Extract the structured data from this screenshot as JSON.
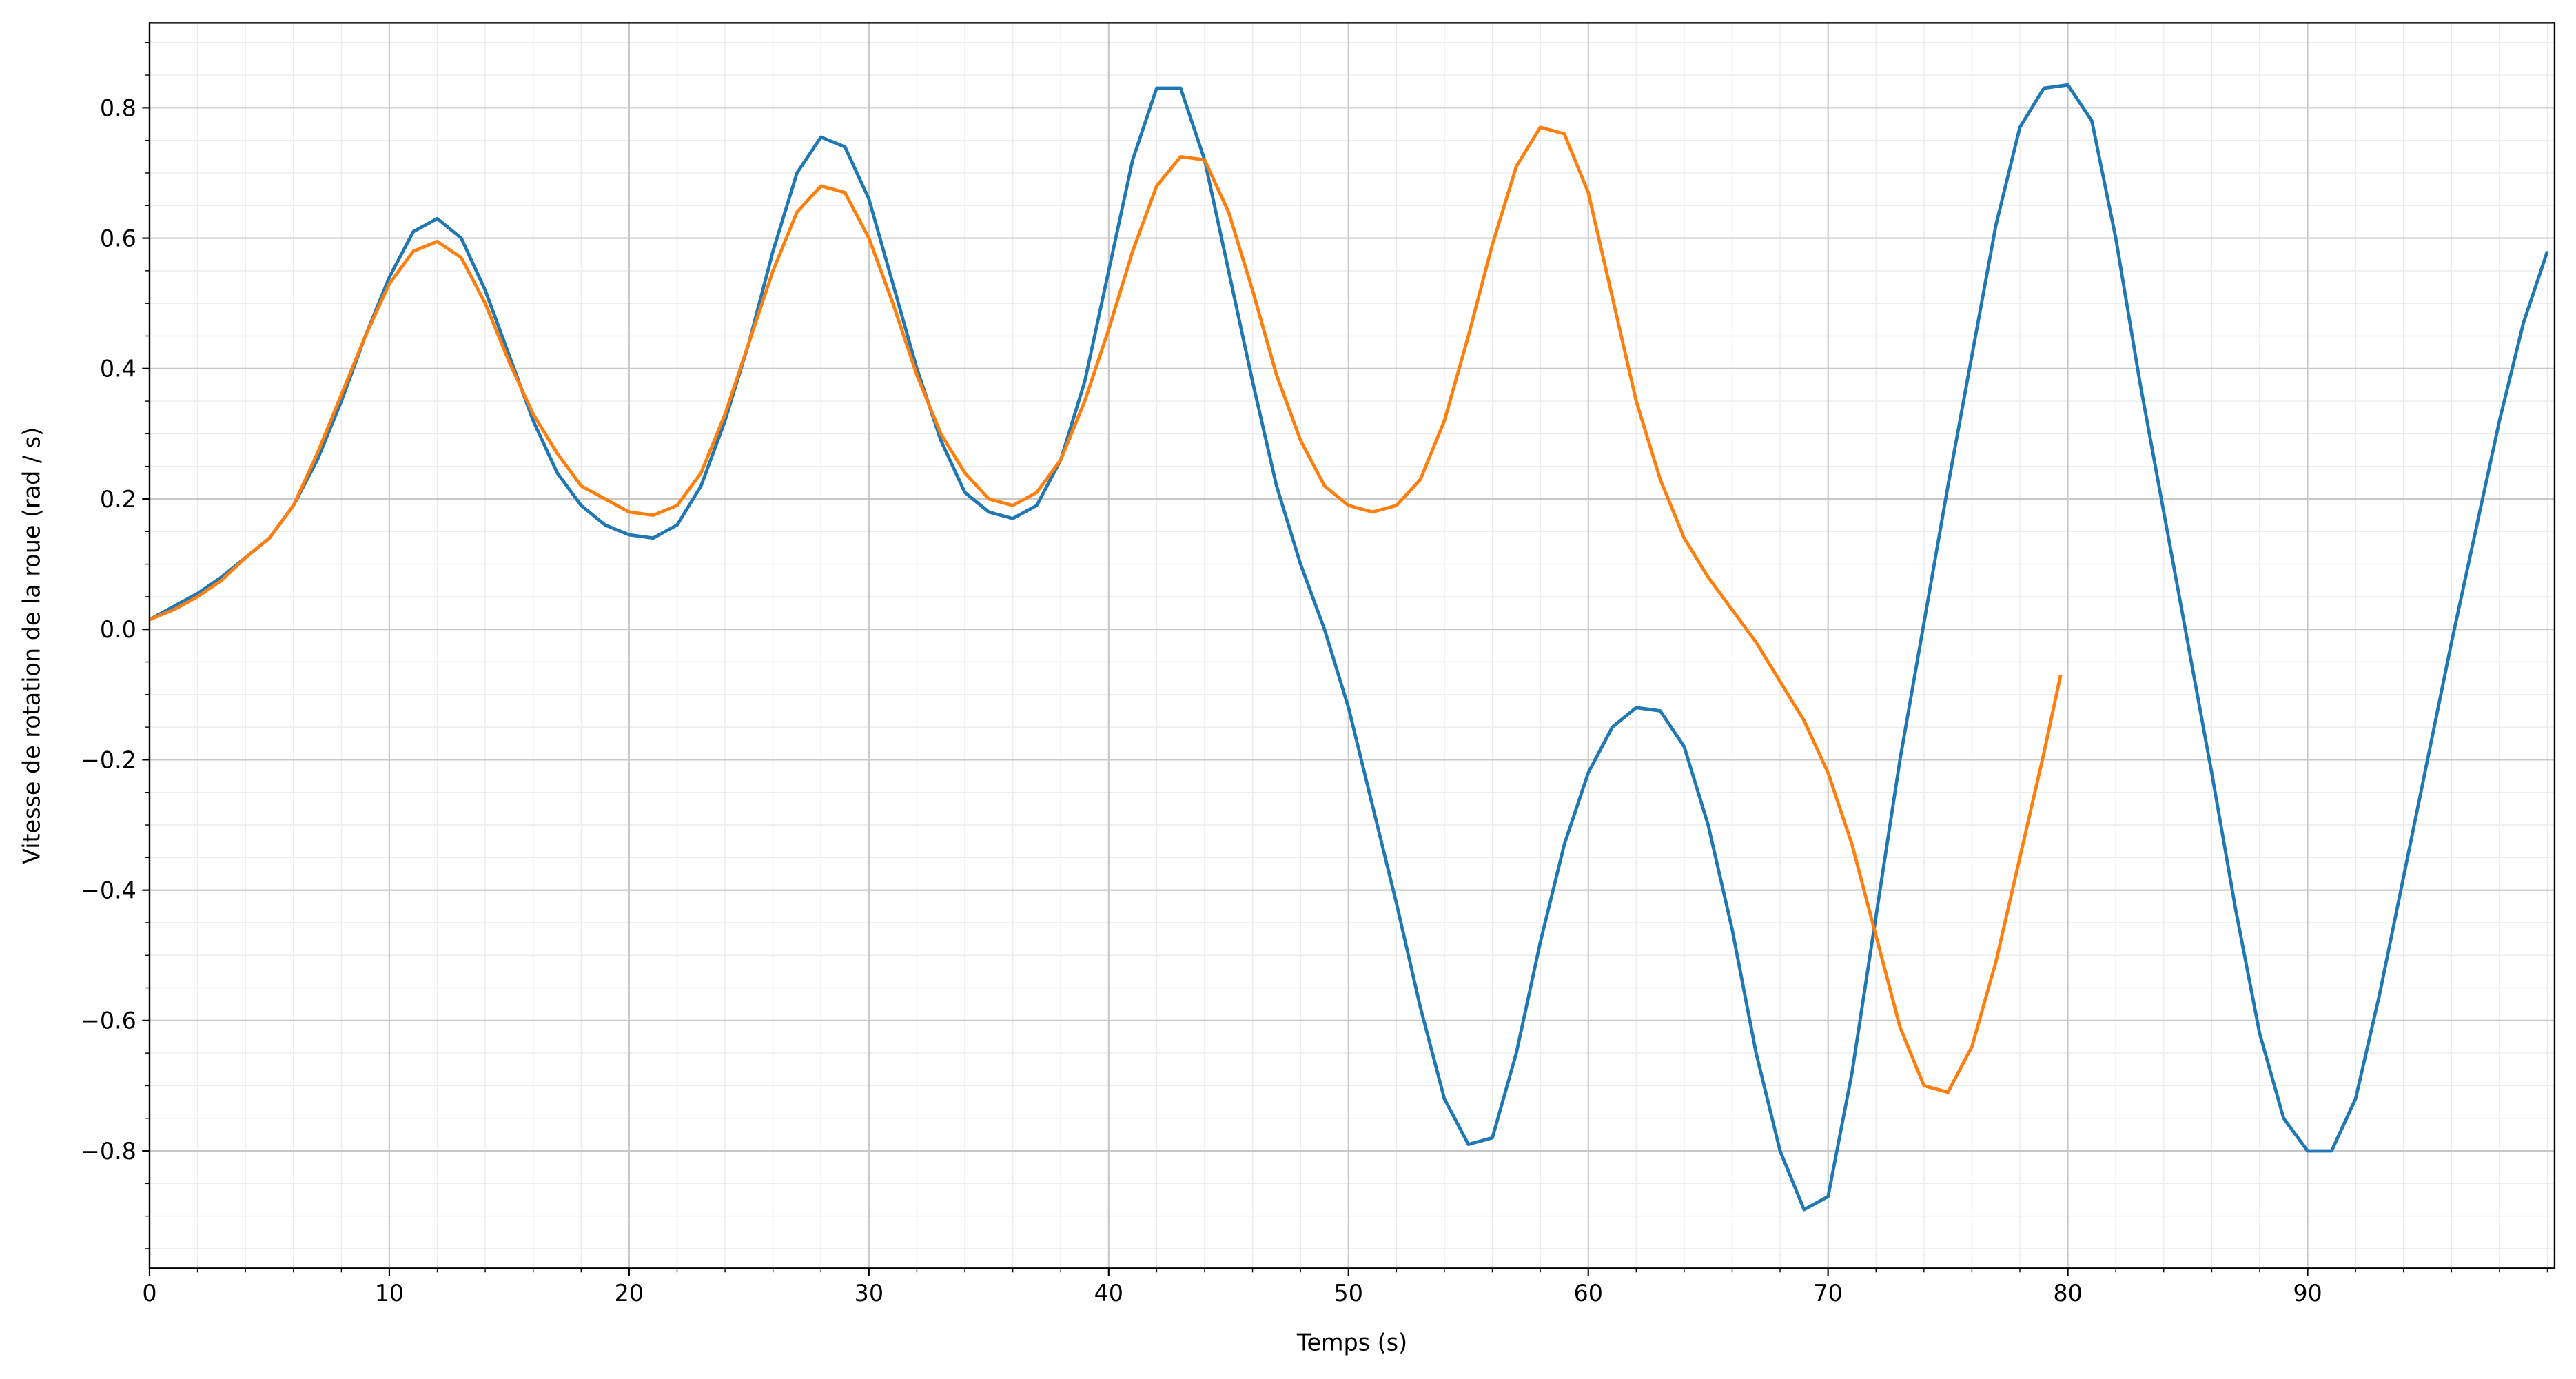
{
  "chart_data": {
    "type": "line",
    "xlabel": "Temps (s)",
    "ylabel": "Vitesse de rotation de la roue (rad / s)",
    "xlim": [
      0,
      100.3
    ],
    "ylim": [
      -0.98,
      0.93
    ],
    "xticks": [
      0,
      10,
      20,
      30,
      40,
      50,
      60,
      70,
      80,
      90
    ],
    "yticks": [
      {
        "value": -0.8,
        "label": "−0.8"
      },
      {
        "value": -0.6,
        "label": "−0.6"
      },
      {
        "value": -0.4,
        "label": "−0.4"
      },
      {
        "value": -0.2,
        "label": "−0.2"
      },
      {
        "value": 0,
        "label": "0.0"
      },
      0.2,
      0.4,
      0.6,
      0.8
    ],
    "grid": true,
    "xminor_step": 2,
    "yminor_step": 0.05,
    "series": [
      {
        "color": "#1f77b4",
        "x": [
          0,
          1,
          2,
          3,
          4,
          5,
          6,
          7,
          8,
          9,
          10,
          11,
          12,
          13,
          14,
          15,
          16,
          17,
          18,
          19,
          20,
          21,
          22,
          23,
          24,
          25,
          26,
          27,
          28,
          29,
          30,
          31,
          32,
          33,
          34,
          35,
          36,
          37,
          38,
          39,
          40,
          41,
          42,
          43,
          44,
          45,
          46,
          47,
          48,
          49,
          50,
          51,
          52,
          53,
          54,
          55,
          56,
          57,
          58,
          59,
          60,
          61,
          62,
          63,
          64,
          65,
          66,
          67,
          68,
          69,
          70,
          71,
          72,
          73,
          74,
          75,
          76,
          77,
          78,
          79,
          80,
          81,
          82,
          83,
          84,
          85,
          86,
          87,
          88,
          89,
          90,
          91,
          92,
          93,
          94,
          95,
          96,
          97,
          98,
          99,
          100
        ],
        "values": [
          0.015,
          0.035,
          0.055,
          0.08,
          0.11,
          0.14,
          0.19,
          0.26,
          0.35,
          0.45,
          0.54,
          0.61,
          0.63,
          0.6,
          0.52,
          0.42,
          0.32,
          0.24,
          0.19,
          0.16,
          0.145,
          0.14,
          0.16,
          0.22,
          0.32,
          0.44,
          0.58,
          0.7,
          0.755,
          0.74,
          0.66,
          0.53,
          0.4,
          0.29,
          0.21,
          0.18,
          0.17,
          0.19,
          0.26,
          0.38,
          0.55,
          0.72,
          0.83,
          0.83,
          0.72,
          0.55,
          0.38,
          0.22,
          0.1,
          0.0,
          -0.12,
          -0.27,
          -0.42,
          -0.58,
          -0.72,
          -0.79,
          -0.78,
          -0.65,
          -0.48,
          -0.33,
          -0.22,
          -0.15,
          -0.12,
          -0.125,
          -0.18,
          -0.3,
          -0.46,
          -0.65,
          -0.8,
          -0.89,
          -0.87,
          -0.68,
          -0.44,
          -0.2,
          0.01,
          0.22,
          0.42,
          0.62,
          0.77,
          0.83,
          0.835,
          0.78,
          0.6,
          0.38,
          0.18,
          -0.02,
          -0.22,
          -0.43,
          -0.62,
          -0.75,
          -0.8,
          -0.8,
          -0.72,
          -0.56,
          -0.38,
          -0.2,
          -0.02,
          0.15,
          0.32,
          0.47,
          0.58
        ]
      },
      {
        "color": "#ff7f0e",
        "x": [
          0,
          1,
          2,
          3,
          4,
          5,
          6,
          7,
          8,
          9,
          10,
          11,
          12,
          13,
          14,
          15,
          16,
          17,
          18,
          19,
          20,
          21,
          22,
          23,
          24,
          25,
          26,
          27,
          28,
          29,
          30,
          31,
          32,
          33,
          34,
          35,
          36,
          37,
          38,
          39,
          40,
          41,
          42,
          43,
          44,
          45,
          46,
          47,
          48,
          49,
          50,
          51,
          52,
          53,
          54,
          55,
          56,
          57,
          58,
          59,
          60,
          61,
          62,
          63,
          64,
          65,
          66,
          67,
          68,
          69,
          70,
          71,
          72,
          73,
          74,
          75,
          76,
          77,
          78,
          79,
          79.7
        ],
        "values": [
          0.015,
          0.03,
          0.05,
          0.075,
          0.11,
          0.14,
          0.19,
          0.27,
          0.36,
          0.45,
          0.53,
          0.58,
          0.595,
          0.57,
          0.5,
          0.41,
          0.33,
          0.27,
          0.22,
          0.2,
          0.18,
          0.175,
          0.19,
          0.24,
          0.33,
          0.44,
          0.55,
          0.64,
          0.68,
          0.67,
          0.6,
          0.5,
          0.39,
          0.3,
          0.24,
          0.2,
          0.19,
          0.21,
          0.26,
          0.35,
          0.46,
          0.58,
          0.68,
          0.725,
          0.72,
          0.64,
          0.52,
          0.39,
          0.29,
          0.22,
          0.19,
          0.18,
          0.19,
          0.23,
          0.32,
          0.45,
          0.59,
          0.71,
          0.77,
          0.76,
          0.67,
          0.51,
          0.35,
          0.23,
          0.14,
          0.08,
          0.03,
          -0.02,
          -0.08,
          -0.14,
          -0.22,
          -0.33,
          -0.47,
          -0.61,
          -0.7,
          -0.71,
          -0.64,
          -0.51,
          -0.35,
          -0.19,
          -0.07
        ]
      }
    ]
  }
}
